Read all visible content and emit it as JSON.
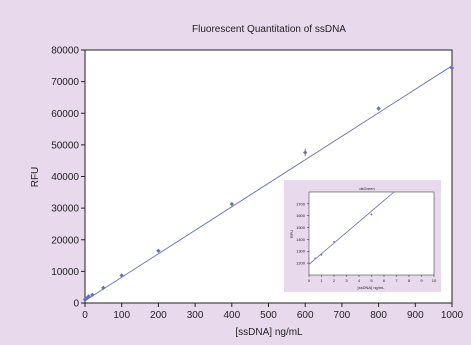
{
  "colors": {
    "background": "#e8d9ec",
    "plot_area": "#ffffff",
    "series": "#6a6fb8",
    "axis": "#222222"
  },
  "chart_data": [
    {
      "type": "scatter",
      "title": "Fluorescent Quantitation of ssDNA",
      "xlabel": "[ssDNA] ng/mL",
      "ylabel": "RFU",
      "xlim": [
        0,
        1000
      ],
      "ylim": [
        0,
        80000
      ],
      "xticks": [
        0,
        100,
        200,
        300,
        400,
        500,
        600,
        700,
        800,
        900,
        1000
      ],
      "yticks": [
        0,
        10000,
        20000,
        30000,
        40000,
        50000,
        60000,
        70000,
        80000
      ],
      "grid": false,
      "series": [
        {
          "x": [
            0,
            2,
            5,
            10,
            20,
            50,
            100,
            200,
            400,
            600,
            800,
            1000
          ],
          "y": [
            1100,
            1250,
            1500,
            2100,
            2600,
            4800,
            8700,
            16500,
            31300,
            47600,
            61500,
            74300
          ],
          "error": [
            0,
            0,
            0,
            0,
            0,
            0,
            0,
            0,
            0,
            1200,
            0,
            0
          ]
        }
      ],
      "fit_line": {
        "x": [
          0,
          1000
        ],
        "y": [
          700,
          75000
        ]
      }
    },
    {
      "type": "scatter",
      "title": "dsGreen",
      "xlabel": "[ssDNA] ng/mL",
      "ylabel": "RFU",
      "xlim": [
        0,
        10
      ],
      "ylim": [
        1100,
        1800
      ],
      "xticks": [
        0,
        1,
        2,
        3,
        4,
        5,
        6,
        7,
        8,
        9,
        10
      ],
      "yticks": [
        1200,
        1300,
        1400,
        1500,
        1600,
        1700
      ],
      "grid": false,
      "series": [
        {
          "x": [
            0,
            0.5,
            1,
            2,
            5
          ],
          "y": [
            1200,
            1240,
            1270,
            1380,
            1610
          ]
        }
      ],
      "fit_line": {
        "x": [
          0,
          6.8
        ],
        "y": [
          1190,
          1800
        ]
      }
    }
  ]
}
